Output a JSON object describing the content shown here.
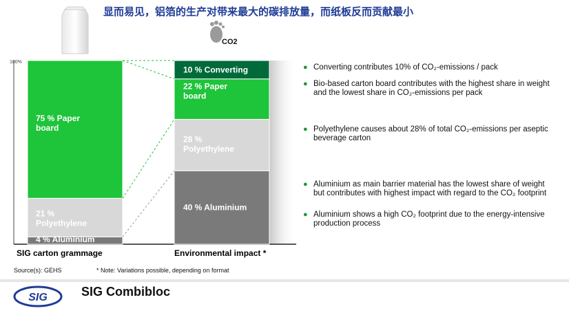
{
  "header": {
    "title": "显而易见，铝箔的生产对带来最大的碳排放量，而纸板反而贡献最小",
    "co2_badge": "CO2"
  },
  "chart_data": {
    "type": "stacked-bar",
    "y_top_label": "100%",
    "columns": [
      {
        "name": "SIG carton grammage",
        "segments": [
          {
            "label": "4 % Aluminium",
            "value": 4,
            "color": "#7a7a7a"
          },
          {
            "label": "21 % Polyethylene",
            "value": 21,
            "color": "#d8d8d8"
          },
          {
            "label": "75 % Paper board",
            "value": 75,
            "color": "#1ec43a"
          }
        ]
      },
      {
        "name": "Environmental impact *",
        "segments": [
          {
            "label": "40 % Aluminium",
            "value": 40,
            "color": "#7a7a7a"
          },
          {
            "label": "28 % Polyethylene",
            "value": 28,
            "color": "#d8d8d8"
          },
          {
            "label": "22 % Paper board",
            "value": 22,
            "color": "#1ec43a"
          },
          {
            "label": "10 % Converting",
            "value": 10,
            "color": "#006a3a"
          }
        ]
      }
    ]
  },
  "bullets": [
    {
      "text": "Converting contributes 10% of CO₂-emissions / pack"
    },
    {
      "text": "Bio-based carton board contributes with the highest share in weight and the lowest share in CO₂-emissions per pack"
    },
    {
      "text": "Polyethylene causes about 28% of total CO₂-emissions per aseptic beverage carton"
    },
    {
      "text": "Aluminium as main barrier material has the lowest share of weight but contributes with highest impact with regard to the CO₂ footprint"
    },
    {
      "text": "Aluminium shows a high CO₂ footprint due to the energy-intensive production process"
    }
  ],
  "footer": {
    "source": "Source(s): GEHS",
    "note": "* Note: Variations possible, depending on format",
    "logo_text": "SIG",
    "brand": "SIG Combibloc"
  },
  "colors": {
    "green": "#1ec43a",
    "dark_green": "#006a3a",
    "light_gray": "#d8d8d8",
    "dark_gray": "#7a7a7a",
    "title_blue": "#1f3b95",
    "logo_blue": "#1f3b95"
  }
}
